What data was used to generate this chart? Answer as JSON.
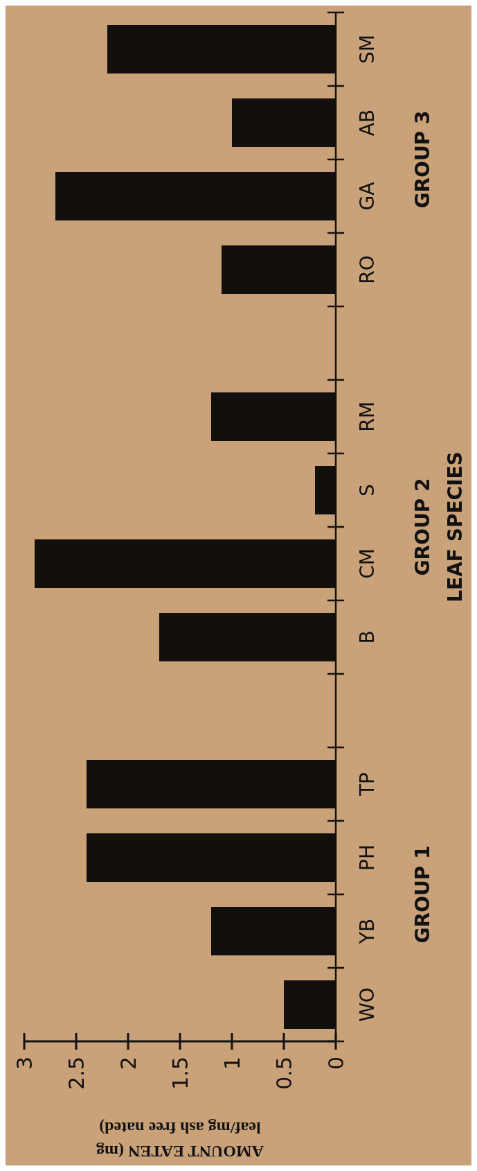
{
  "chart_data": {
    "type": "bar",
    "orientation": "horizontal",
    "categories": [
      "SM",
      "AB",
      "GA",
      "RO",
      null,
      "RM",
      "S",
      "CM",
      "B",
      null,
      "TP",
      "PH",
      "YB",
      "WO"
    ],
    "values": [
      2.2,
      1.0,
      2.7,
      1.1,
      null,
      1.2,
      0.2,
      2.9,
      1.7,
      null,
      2.4,
      2.4,
      1.2,
      0.5
    ],
    "color": "#120f0c",
    "ylabel": "LEAF SPECIES",
    "xlabel": "AMOUNT EATEN (mg\nleaf/mg ash free nated)",
    "annotations": [
      "GROUP 3",
      "GROUP 2",
      "GROUP 1"
    ],
    "xlim": [
      3,
      0
    ],
    "xticks": [
      0,
      0.5,
      1,
      1.5,
      2,
      2.5,
      3
    ],
    "grid": false
  }
}
